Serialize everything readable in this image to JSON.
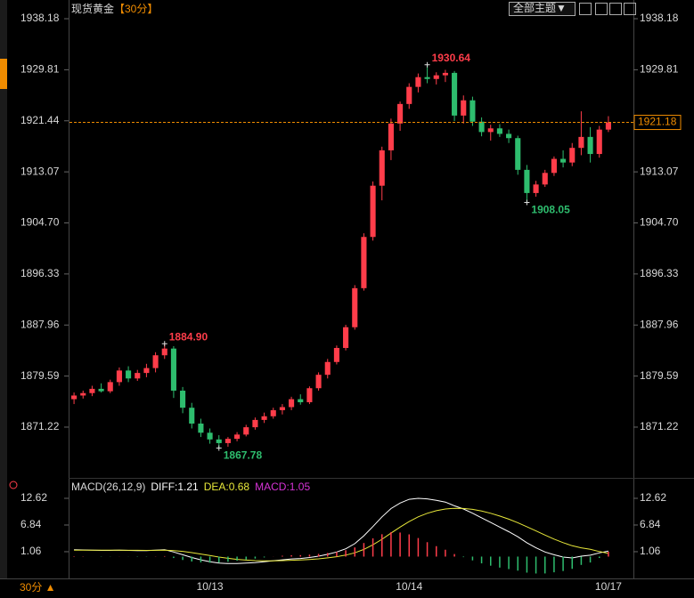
{
  "header": {
    "title": "现货黄金",
    "period": "【30分】",
    "theme_button": "全部主题▼"
  },
  "footer": {
    "period": "30分 ▲"
  },
  "chart_data": [
    {
      "type": "candlestick",
      "categories": [
        null,
        null,
        null,
        null,
        null,
        null,
        null,
        null,
        null,
        null,
        null,
        null,
        null,
        null,
        null,
        "10/13",
        null,
        null,
        null,
        null,
        null,
        null,
        null,
        null,
        null,
        null,
        null,
        null,
        null,
        null,
        null,
        null,
        null,
        null,
        null,
        null,
        null,
        "10/14",
        null,
        null,
        null,
        null,
        null,
        null,
        null,
        null,
        null,
        null,
        null,
        null,
        null,
        null,
        null,
        null,
        null,
        null,
        null,
        null,
        null,
        "10/17"
      ],
      "open": [
        1875.8,
        1876.4,
        1876.8,
        1877.5,
        1877.1,
        1878.6,
        1880.5,
        1879.2,
        1880.1,
        1880.9,
        1883.0,
        1884.1,
        1877.2,
        1874.4,
        1871.8,
        1870.3,
        1869.2,
        1868.6,
        1869.3,
        1870.0,
        1871.2,
        1872.4,
        1873.0,
        1874.0,
        1874.5,
        1875.8,
        1875.3,
        1877.6,
        1879.8,
        1881.9,
        1884.2,
        1887.6,
        1894.0,
        1902.4,
        1910.8,
        1916.6,
        1921.0,
        1924.2,
        1927.0,
        1928.6,
        1928.3,
        1928.9,
        1929.3,
        1922.3,
        1924.8,
        1921.3,
        1919.6,
        1920.2,
        1919.3,
        1918.6,
        1913.4,
        1909.6,
        1911.0,
        1912.9,
        1915.2,
        1914.6,
        1917.0,
        1918.8,
        1916.0,
        1920.0
      ],
      "high": [
        1876.9,
        1877.2,
        1878.0,
        1878.4,
        1879.0,
        1881.0,
        1881.2,
        1880.6,
        1881.6,
        1883.5,
        1884.9,
        1884.5,
        1877.8,
        1875.2,
        1872.6,
        1871.0,
        1869.9,
        1869.6,
        1870.4,
        1871.6,
        1872.8,
        1873.6,
        1874.4,
        1875.0,
        1876.2,
        1876.6,
        1877.9,
        1880.2,
        1882.4,
        1884.6,
        1888.0,
        1894.5,
        1903.0,
        1911.5,
        1917.2,
        1921.8,
        1924.6,
        1927.6,
        1929.2,
        1930.64,
        1929.4,
        1929.8,
        1929.6,
        1925.6,
        1925.4,
        1922.0,
        1920.8,
        1920.9,
        1920.0,
        1919.0,
        1914.2,
        1911.6,
        1913.4,
        1915.6,
        1916.6,
        1917.8,
        1923.0,
        1920.4,
        1920.6,
        1922.2
      ],
      "low": [
        1875.0,
        1875.9,
        1876.3,
        1876.9,
        1876.8,
        1878.0,
        1878.6,
        1878.8,
        1879.4,
        1880.2,
        1882.4,
        1876.0,
        1873.5,
        1871.0,
        1869.6,
        1868.5,
        1867.78,
        1868.0,
        1868.9,
        1869.7,
        1870.8,
        1871.9,
        1872.6,
        1873.3,
        1874.0,
        1874.9,
        1875.0,
        1877.2,
        1879.2,
        1881.5,
        1883.8,
        1887.2,
        1893.6,
        1901.8,
        1908.4,
        1915.0,
        1919.8,
        1923.4,
        1926.1,
        1927.6,
        1927.4,
        1927.8,
        1921.4,
        1921.0,
        1920.6,
        1918.9,
        1918.2,
        1918.8,
        1917.8,
        1912.6,
        1908.05,
        1909.0,
        1910.6,
        1912.4,
        1913.8,
        1914.0,
        1915.8,
        1914.6,
        1915.4,
        1919.6
      ],
      "close": [
        1876.4,
        1876.8,
        1877.5,
        1877.1,
        1878.6,
        1880.5,
        1879.2,
        1880.1,
        1880.9,
        1883.0,
        1884.1,
        1877.2,
        1874.4,
        1871.8,
        1870.3,
        1869.2,
        1868.6,
        1869.3,
        1870.0,
        1871.2,
        1872.4,
        1873.0,
        1874.0,
        1874.5,
        1875.8,
        1875.3,
        1877.6,
        1879.8,
        1881.9,
        1884.2,
        1887.6,
        1894.0,
        1902.4,
        1910.8,
        1916.6,
        1921.0,
        1924.2,
        1927.0,
        1928.6,
        1928.3,
        1928.9,
        1929.3,
        1922.3,
        1924.8,
        1921.3,
        1919.6,
        1920.2,
        1919.3,
        1918.6,
        1913.4,
        1909.6,
        1911.0,
        1912.9,
        1915.2,
        1914.6,
        1917.0,
        1918.8,
        1916.0,
        1920.0,
        1921.18
      ],
      "up_color": "#ff3d4a",
      "down_color": "#2ebd6e",
      "ylim": [
        1862.9,
        1940.08
      ],
      "yticks": [
        1938.18,
        1929.81,
        1921.44,
        1913.07,
        {
          "value": 1904.7,
          "label": "1904.70"
        },
        1896.33,
        1887.96,
        1879.59,
        1871.22
      ],
      "annotations": [
        {
          "value": 1884.9,
          "label": "1884.90"
        },
        1867.78,
        1930.64,
        1908.05
      ],
      "last_price": 1921.18,
      "last_price_color": "#f08c00"
    },
    {
      "type": "macd",
      "title": "MACD(26,12,9)",
      "ylim": [
        -4.34,
        16.47
      ],
      "yticks": [
        12.62,
        6.84,
        1.06
      ],
      "up_color": "#ff3d4a",
      "down_color": "#2ebd6e",
      "series": [
        {
          "name": "DIFF:",
          "color": "#ffffff",
          "values": [
            1.5,
            1.45,
            1.4,
            1.35,
            1.35,
            1.4,
            1.35,
            1.3,
            1.3,
            1.4,
            1.5,
            1.0,
            0.4,
            -0.2,
            -0.7,
            -1.1,
            -1.4,
            -1.5,
            -1.5,
            -1.4,
            -1.3,
            -1.1,
            -0.9,
            -0.7,
            -0.5,
            -0.4,
            -0.2,
            0.1,
            0.5,
            1.0,
            1.7,
            2.8,
            4.5,
            6.5,
            8.6,
            10.4,
            11.6,
            12.4,
            12.62,
            12.5,
            12.2,
            11.8,
            11.0,
            10.3,
            9.4,
            8.4,
            7.4,
            6.4,
            5.4,
            4.3,
            3.0,
            1.9,
            1.0,
            0.4,
            -0.1,
            -0.3,
            0.1,
            0.3,
            0.8,
            1.21
          ]
        },
        {
          "name": "DEA:",
          "color": "#e8e83a",
          "values": [
            1.4,
            1.4,
            1.4,
            1.4,
            1.38,
            1.38,
            1.37,
            1.36,
            1.35,
            1.36,
            1.39,
            1.31,
            1.13,
            0.86,
            0.55,
            0.22,
            -0.1,
            -0.38,
            -0.6,
            -0.76,
            -0.87,
            -0.92,
            -0.92,
            -0.88,
            -0.8,
            -0.72,
            -0.62,
            -0.48,
            -0.28,
            -0.02,
            0.32,
            0.82,
            1.56,
            2.55,
            3.76,
            5.09,
            6.39,
            7.59,
            8.6,
            9.38,
            9.94,
            10.31,
            10.45,
            10.42,
            10.22,
            9.86,
            9.37,
            8.78,
            8.1,
            7.34,
            6.47,
            5.56,
            4.65,
            3.8,
            3.02,
            2.35,
            1.9,
            1.58,
            1.1,
            0.68
          ]
        },
        {
          "name": "MACD:",
          "color": "#d633d6",
          "style": "bar",
          "values": [
            0.1,
            0.05,
            0,
            -0.05,
            -0.03,
            0.02,
            -0.02,
            -0.06,
            -0.05,
            0.04,
            0.11,
            -0.31,
            -0.73,
            -1.06,
            -1.25,
            -1.32,
            -1.3,
            -1.12,
            -0.9,
            -0.64,
            -0.43,
            -0.18,
            0.02,
            0.18,
            0.3,
            0.32,
            0.42,
            0.58,
            0.78,
            1.02,
            1.38,
            1.98,
            2.94,
            3.95,
            4.84,
            5.31,
            5.21,
            4.81,
            4.02,
            3.12,
            2.26,
            1.49,
            0.55,
            -0.12,
            -0.82,
            -1.46,
            -1.97,
            -2.38,
            -2.7,
            -3.04,
            -3.47,
            -3.66,
            -3.65,
            -3.4,
            -3.12,
            -2.65,
            -1.8,
            -1.28,
            -0.3,
            1.05
          ]
        }
      ]
    }
  ]
}
